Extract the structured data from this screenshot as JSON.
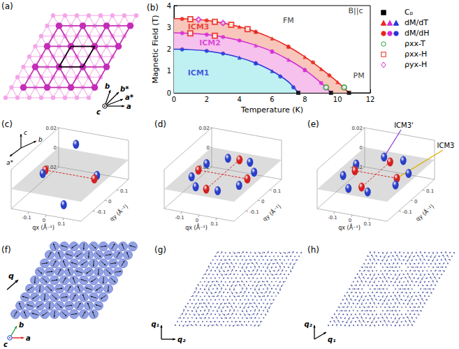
{
  "chart_data": {
    "type": "scatter",
    "title": "(b)",
    "xlabel": "Temperature (K)",
    "ylabel": "Magnetic Field (T)",
    "xlim": [
      0,
      12
    ],
    "xticks": [
      0,
      2,
      4,
      6,
      8,
      10,
      12
    ],
    "ylim": [
      0,
      4
    ],
    "yticks": [
      0,
      1,
      2,
      3,
      4
    ],
    "grid": false,
    "legend": "right",
    "boundaries": [
      {
        "colors": [
          "#e8251c",
          "#f9c6bb"
        ],
        "x": [
          0,
          1,
          2,
          3,
          4,
          5,
          6,
          7,
          8,
          9,
          10,
          10.7
        ],
        "values": [
          3.4,
          3.38,
          3.32,
          3.2,
          3.03,
          2.8,
          2.5,
          2.12,
          1.65,
          1.1,
          0.5,
          0
        ]
      },
      {
        "colors": [
          "#d42ad4",
          "#f6c1ec"
        ],
        "x": [
          0,
          1,
          2,
          3,
          4,
          5,
          6,
          7,
          8,
          9,
          9.6
        ],
        "values": [
          2.75,
          2.73,
          2.67,
          2.56,
          2.4,
          2.18,
          1.9,
          1.52,
          1.05,
          0.45,
          0
        ]
      },
      {
        "colors": [
          "#2635d8",
          "#bff1f3"
        ],
        "x": [
          0,
          1,
          2,
          3,
          4,
          5,
          6,
          7,
          7.6
        ],
        "values": [
          2.0,
          1.98,
          1.92,
          1.8,
          1.62,
          1.36,
          1.0,
          0.5,
          0
        ]
      }
    ],
    "series": [
      {
        "name": "Cₚ",
        "marker": "square",
        "color": "#000000",
        "x": [
          7.6,
          9.6,
          10.7
        ],
        "values": [
          0,
          0,
          0
        ]
      },
      {
        "name": "dM/dT",
        "marker": "triangle",
        "colors": [
          "#e8251c",
          "#e8251c",
          "#e8251c",
          "#e8251c",
          "#e8251c",
          "#e8251c",
          "#e8251c",
          "#d42ad4",
          "#d42ad4",
          "#d42ad4",
          "#d42ad4",
          "#2635d8",
          "#2635d8",
          "#2635d8"
        ],
        "x": [
          4,
          5,
          6,
          7,
          8,
          9,
          10,
          5,
          6,
          7,
          8,
          4,
          5,
          6
        ],
        "values": [
          3.03,
          2.8,
          2.5,
          2.12,
          1.65,
          1.1,
          0.5,
          2.18,
          1.9,
          1.52,
          1.05,
          1.62,
          1.36,
          1.0
        ]
      },
      {
        "name": "dM/dH",
        "marker": "circle",
        "colors": [
          "#e8251c",
          "#e8251c",
          "#e8251c",
          "#e8251c",
          "#e8251c",
          "#e8251c",
          "#e8251c",
          "#d42ad4",
          "#d42ad4",
          "#d42ad4",
          "#d42ad4",
          "#d42ad4",
          "#d42ad4",
          "#d42ad4",
          "#2635d8",
          "#2635d8",
          "#2635d8",
          "#2635d8",
          "#2635d8",
          "#2635d8"
        ],
        "x": [
          0.5,
          2,
          3,
          5,
          7,
          8.5,
          9.5,
          0.5,
          2,
          3,
          4,
          6,
          8,
          9,
          0.5,
          2,
          3,
          5,
          6.5,
          7.3
        ],
        "values": [
          3.39,
          3.32,
          3.2,
          2.8,
          2.12,
          1.4,
          0.8,
          2.74,
          2.67,
          2.56,
          2.4,
          1.9,
          1.05,
          0.45,
          1.99,
          1.92,
          1.8,
          1.36,
          0.75,
          0.25
        ]
      },
      {
        "name": "ρxx-T",
        "marker": "open_circle",
        "color": "#2e9e3e",
        "x": [
          9.3,
          10.4
        ],
        "values": [
          0.25,
          0.25
        ]
      },
      {
        "name": "ρxx-H",
        "marker": "open_square",
        "color": "#e8251c",
        "x": [
          1,
          2.5,
          3.5,
          4.5,
          1,
          2.5
        ],
        "values": [
          3.38,
          3.26,
          3.12,
          2.92,
          2.73,
          2.62
        ]
      },
      {
        "name": "ρyx-H",
        "marker": "open_diamond",
        "color": "#d42ad4",
        "x": [
          1.5,
          3
        ],
        "values": [
          3.36,
          3.2
        ]
      }
    ],
    "annotations": [
      {
        "text": "B||c",
        "x": 11.1,
        "y": 3.75,
        "color": "#000000"
      },
      {
        "text": "FM",
        "x": 7,
        "y": 3.3,
        "color": "#000000"
      },
      {
        "text": "PM",
        "x": 11.3,
        "y": 0.8,
        "color": "#000000"
      },
      {
        "text": "ICM3",
        "x": 1.5,
        "y": 3.03,
        "color": "#e8251c"
      },
      {
        "text": "ICM2",
        "x": 2.2,
        "y": 2.3,
        "color": "#d42ad4"
      },
      {
        "text": "ICM1",
        "x": 1.5,
        "y": 0.9,
        "color": "#2635d8"
      }
    ]
  },
  "panels": {
    "a": {
      "letter": "(a)",
      "axes": [
        "a",
        "a*",
        "b",
        "b*",
        "c"
      ]
    },
    "c": {
      "letter": "(c)",
      "xlabel": "qx (Å⁻¹)",
      "ylabel": "qy (Å⁻¹)",
      "xlim": [
        -0.2,
        0.2
      ],
      "ylim": [
        -0.2,
        0.2
      ],
      "zlim": [
        -0.02,
        0.02
      ],
      "xticks": [
        -0.1,
        0,
        0.1
      ],
      "yticks": [
        -0.1,
        0,
        0.1
      ],
      "zticks": [
        -0.02,
        0,
        0.02
      ],
      "axes": [
        "c",
        "b",
        "a*"
      ],
      "spots": [
        {
          "color": "#d42020",
          "line_style": "dashed",
          "q": [
            [
              -0.14,
              0,
              0
            ],
            [
              0.14,
              0,
              0
            ]
          ]
        },
        {
          "color": "#2a3fc8",
          "q": [
            [
              -0.06,
              0.14,
              0.014
            ],
            [
              0.06,
              -0.14,
              -0.014
            ],
            [
              0.06,
              0.14,
              -0.014
            ],
            [
              -0.06,
              -0.14,
              0.014
            ]
          ]
        }
      ]
    },
    "d": {
      "letter": "(d)",
      "xlabel": "qx (Å⁻¹)",
      "ylabel": "qy (Å⁻¹)",
      "xlim": [
        -0.2,
        0.2
      ],
      "ylim": [
        -0.2,
        0.2
      ],
      "zlim": [
        -0.02,
        0.02
      ],
      "xticks": [
        -0.1,
        0,
        0.1
      ],
      "yticks": [
        -0.1,
        0,
        0.1
      ],
      "zticks": [
        -0.02,
        0,
        0.02
      ],
      "spots": [
        {
          "color": "#d42020",
          "line_style": "dashed",
          "q": [
            [
              0.14,
              0,
              0
            ],
            [
              0,
              0.14,
              0
            ],
            [
              -0.14,
              0,
              0
            ],
            [
              0,
              -0.14,
              0
            ]
          ]
        },
        {
          "color": "#2a3fc8",
          "q": [
            [
              0.136,
              0.063,
              0
            ],
            [
              0.063,
              0.136,
              0
            ],
            [
              -0.063,
              0.136,
              0
            ],
            [
              -0.136,
              0.063,
              0
            ],
            [
              -0.136,
              -0.063,
              0
            ],
            [
              -0.063,
              -0.136,
              0
            ],
            [
              0.063,
              -0.136,
              0
            ],
            [
              0.136,
              -0.063,
              0
            ]
          ]
        }
      ]
    },
    "e": {
      "letter": "(e)",
      "xlabel": "qx (Å⁻¹)",
      "ylabel": "qy (Å⁻¹)",
      "xlim": [
        -0.2,
        0.2
      ],
      "ylim": [
        -0.2,
        0.2
      ],
      "zlim": [
        -0.02,
        0.02
      ],
      "xticks": [
        -0.1,
        0,
        0.1
      ],
      "yticks": [
        -0.1,
        0,
        0.1
      ],
      "zticks": [
        -0.02,
        0,
        0.02
      ],
      "spots": [
        {
          "color": "#d42020",
          "line_style": "dashed",
          "q": [
            [
              0.12,
              0,
              0
            ],
            [
              0,
              0.12,
              0
            ],
            [
              -0.12,
              0,
              0
            ],
            [
              0,
              -0.12,
              0
            ]
          ]
        },
        {
          "color": "#2a3fc8",
          "q": [
            [
              0.15,
              0.055,
              0
            ],
            [
              0.055,
              0.15,
              0
            ],
            [
              -0.055,
              0.15,
              0
            ],
            [
              -0.15,
              0.055,
              0
            ],
            [
              -0.15,
              -0.055,
              0
            ],
            [
              -0.055,
              -0.15,
              0
            ],
            [
              0.055,
              -0.15,
              0
            ],
            [
              0.15,
              -0.055,
              0
            ]
          ]
        }
      ],
      "annotations": [
        {
          "text": "ICM3'",
          "q": [
            -0.055,
            0.15,
            0
          ],
          "color": "#8b3fd9"
        },
        {
          "text": "ICM3",
          "q": [
            0.12,
            0,
            0
          ],
          "color": "#e0b000"
        }
      ]
    },
    "f": {
      "letter": "(f)",
      "axes": [
        "q",
        "a",
        "b",
        "c"
      ]
    },
    "g": {
      "letter": "(g)",
      "axes": [
        "q₁",
        "q₂"
      ]
    },
    "h": {
      "letter": "(h)",
      "axes": [
        "q₂",
        "q₁"
      ]
    }
  }
}
